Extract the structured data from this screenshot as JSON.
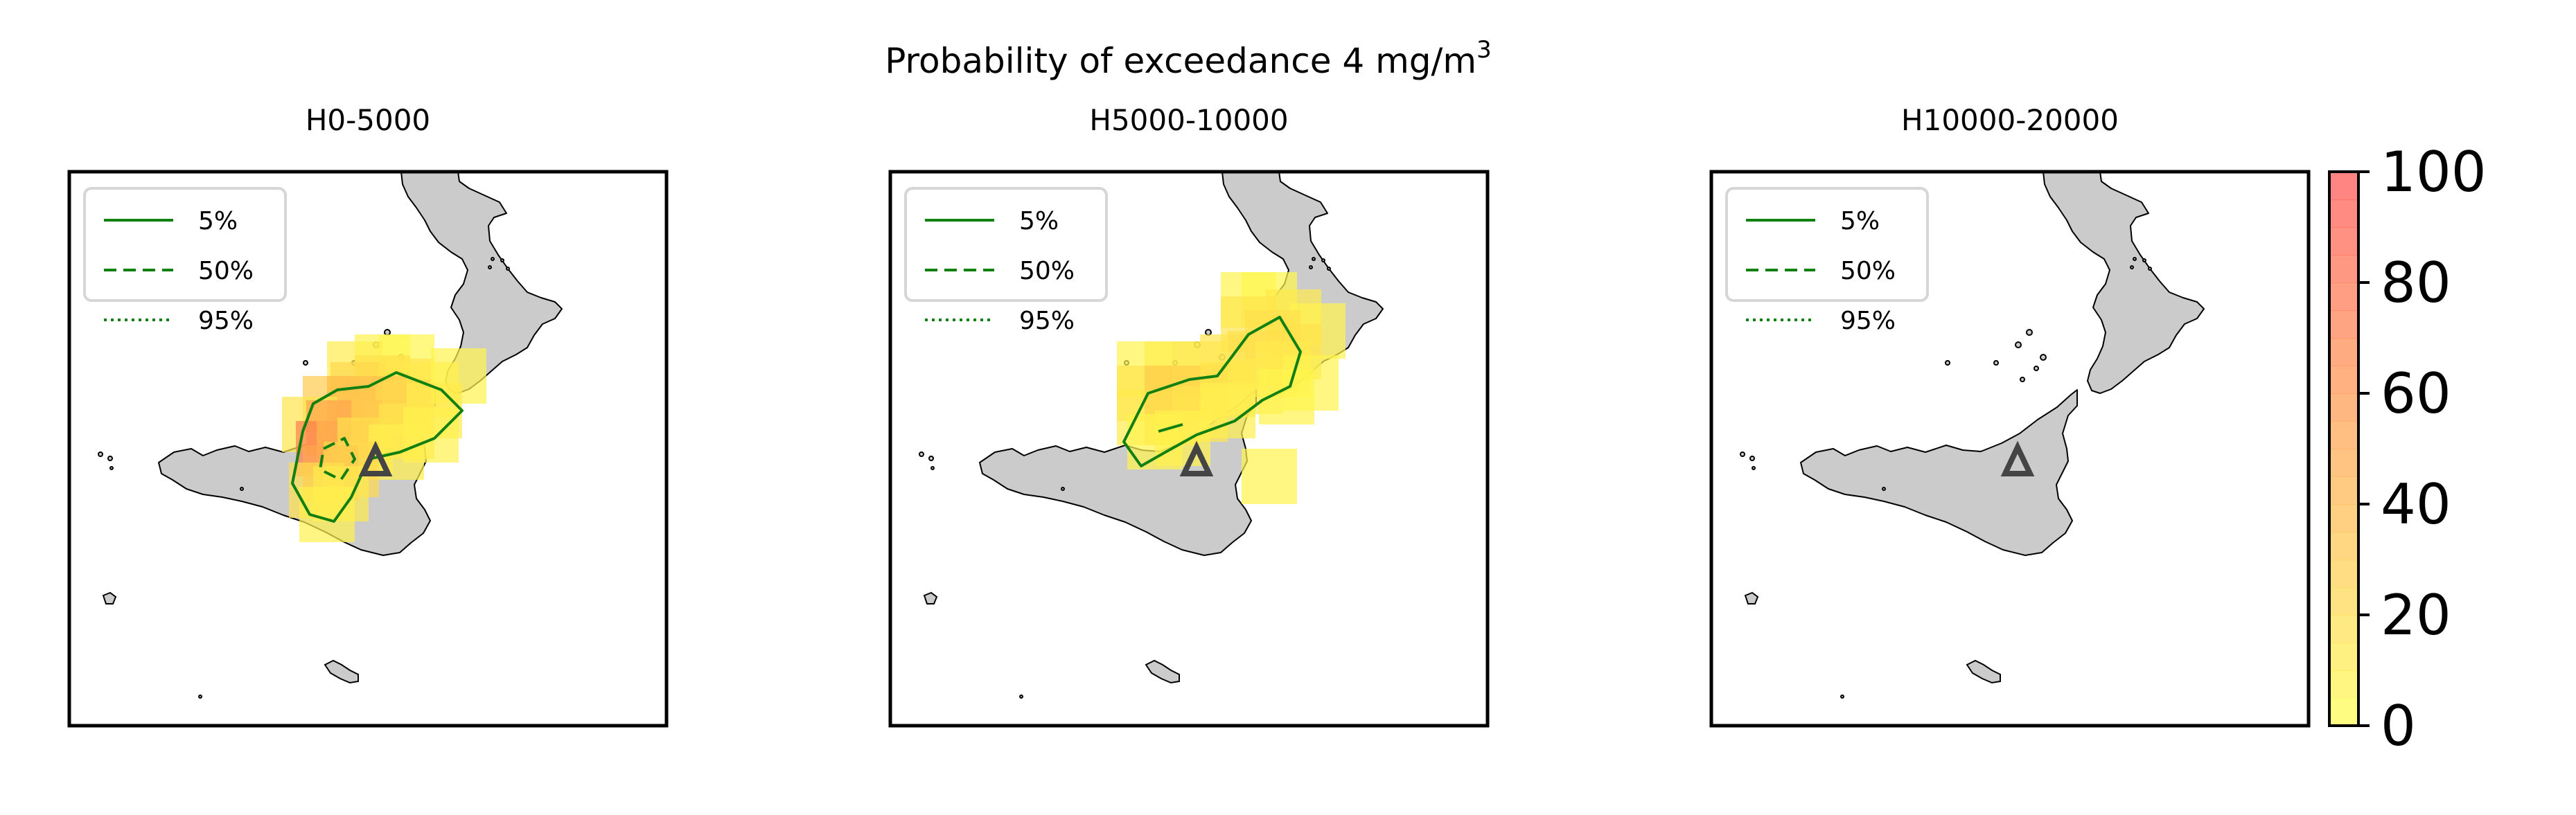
{
  "figure": {
    "title": "Probability of exceedance 4 mg/m",
    "title_sup": "3"
  },
  "chart_data": [
    {
      "type": "heatmap",
      "title": "H0-5000",
      "legend": {
        "placement": "top-left",
        "entries": [
          {
            "label": "5%",
            "style": "solid"
          },
          {
            "label": "50%",
            "style": "dashed"
          },
          {
            "label": "95%",
            "style": "dotted"
          }
        ]
      },
      "vent": "triangle",
      "contours": [
        {
          "level": "5%",
          "style": "solid",
          "points": [
            [
              -1.05,
              0.45
            ],
            [
              -0.9,
              0.85
            ],
            [
              -0.55,
              1.05
            ],
            [
              -0.1,
              1.1
            ],
            [
              0.3,
              1.3
            ],
            [
              0.95,
              1.05
            ],
            [
              1.25,
              0.75
            ],
            [
              0.85,
              0.35
            ],
            [
              0.35,
              0.15
            ],
            [
              -0.1,
              0.05
            ],
            [
              -0.35,
              -0.5
            ],
            [
              -0.6,
              -0.85
            ],
            [
              -0.95,
              -0.75
            ],
            [
              -1.2,
              -0.3
            ]
          ]
        },
        {
          "level": "50%",
          "style": "dashed",
          "points": [
            [
              -0.75,
              0.2
            ],
            [
              -0.45,
              0.35
            ],
            [
              -0.3,
              0.05
            ],
            [
              -0.5,
              -0.25
            ],
            [
              -0.8,
              -0.1
            ]
          ]
        }
      ],
      "cells": [
        {
          "x": 0.1,
          "y": 1.45,
          "p": 6
        },
        {
          "x": 0.45,
          "y": 1.45,
          "p": 5
        },
        {
          "x": -0.3,
          "y": 1.35,
          "p": 10
        },
        {
          "x": 0.1,
          "y": 1.15,
          "p": 18
        },
        {
          "x": -0.25,
          "y": 1.05,
          "p": 22
        },
        {
          "x": 0.45,
          "y": 1.1,
          "p": 14
        },
        {
          "x": 0.8,
          "y": 1.05,
          "p": 12
        },
        {
          "x": 1.2,
          "y": 1.25,
          "p": 7
        },
        {
          "x": -0.65,
          "y": 0.85,
          "p": 30
        },
        {
          "x": -0.3,
          "y": 0.85,
          "p": 36
        },
        {
          "x": 0.05,
          "y": 0.85,
          "p": 32
        },
        {
          "x": 0.4,
          "y": 0.8,
          "p": 22
        },
        {
          "x": 0.85,
          "y": 0.75,
          "p": 12
        },
        {
          "x": -0.95,
          "y": 0.55,
          "p": 14
        },
        {
          "x": -0.6,
          "y": 0.5,
          "p": 50
        },
        {
          "x": -0.3,
          "y": 0.5,
          "p": 45
        },
        {
          "x": 0.05,
          "y": 0.5,
          "p": 25
        },
        {
          "x": 0.45,
          "y": 0.45,
          "p": 15
        },
        {
          "x": 0.8,
          "y": 0.4,
          "p": 8
        },
        {
          "x": -0.75,
          "y": 0.2,
          "p": 72
        },
        {
          "x": -0.45,
          "y": 0.2,
          "p": 40
        },
        {
          "x": -0.15,
          "y": 0.25,
          "p": 18
        },
        {
          "x": 0.3,
          "y": 0.15,
          "p": 9
        },
        {
          "x": -0.65,
          "y": -0.15,
          "p": 50
        },
        {
          "x": -0.35,
          "y": -0.1,
          "p": 22
        },
        {
          "x": -0.85,
          "y": -0.4,
          "p": 18
        },
        {
          "x": -0.5,
          "y": -0.45,
          "p": 12
        },
        {
          "x": -0.7,
          "y": -0.75,
          "p": 8
        }
      ]
    },
    {
      "type": "heatmap",
      "title": "H5000-10000",
      "legend": {
        "placement": "top-left",
        "entries": [
          {
            "label": "5%",
            "style": "solid"
          },
          {
            "label": "50%",
            "style": "dashed"
          },
          {
            "label": "95%",
            "style": "dotted"
          }
        ]
      },
      "vent": "triangle",
      "contours": [
        {
          "level": "5%",
          "style": "solid",
          "points": [
            [
              -1.05,
              0.3
            ],
            [
              -0.7,
              1.0
            ],
            [
              -0.1,
              1.2
            ],
            [
              0.3,
              1.25
            ],
            [
              0.75,
              1.85
            ],
            [
              1.2,
              2.1
            ],
            [
              1.5,
              1.6
            ],
            [
              1.35,
              1.1
            ],
            [
              0.95,
              0.9
            ],
            [
              0.55,
              0.6
            ],
            [
              0.0,
              0.4
            ],
            [
              -0.45,
              0.15
            ],
            [
              -0.8,
              -0.05
            ]
          ]
        },
        {
          "level": "5%",
          "style": "solid",
          "points": [
            [
              -0.55,
              0.45
            ],
            [
              -0.2,
              0.55
            ]
          ]
        }
      ],
      "cells": [
        {
          "x": 0.75,
          "y": 2.35,
          "p": 6
        },
        {
          "x": 1.05,
          "y": 2.35,
          "p": 5
        },
        {
          "x": 1.4,
          "y": 2.1,
          "p": 12
        },
        {
          "x": 1.75,
          "y": 1.9,
          "p": 6
        },
        {
          "x": 0.75,
          "y": 2.0,
          "p": 14
        },
        {
          "x": 1.1,
          "y": 1.8,
          "p": 18
        },
        {
          "x": 1.4,
          "y": 1.6,
          "p": 16
        },
        {
          "x": -0.75,
          "y": 1.35,
          "p": 7
        },
        {
          "x": -0.35,
          "y": 1.35,
          "p": 10
        },
        {
          "x": 0.05,
          "y": 1.35,
          "p": 12
        },
        {
          "x": 0.45,
          "y": 1.45,
          "p": 14
        },
        {
          "x": 0.85,
          "y": 1.5,
          "p": 18
        },
        {
          "x": 1.25,
          "y": 1.35,
          "p": 12
        },
        {
          "x": 1.65,
          "y": 1.15,
          "p": 6
        },
        {
          "x": -0.75,
          "y": 1.0,
          "p": 16
        },
        {
          "x": -0.35,
          "y": 1.0,
          "p": 28
        },
        {
          "x": 0.05,
          "y": 1.0,
          "p": 22
        },
        {
          "x": 0.45,
          "y": 1.05,
          "p": 15
        },
        {
          "x": 0.85,
          "y": 1.1,
          "p": 12
        },
        {
          "x": 1.3,
          "y": 0.95,
          "p": 7
        },
        {
          "x": -0.75,
          "y": 0.65,
          "p": 12
        },
        {
          "x": -0.35,
          "y": 0.65,
          "p": 22
        },
        {
          "x": 0.05,
          "y": 0.7,
          "p": 14
        },
        {
          "x": 0.45,
          "y": 0.75,
          "p": 9
        },
        {
          "x": -0.6,
          "y": 0.3,
          "p": 7
        },
        {
          "x": -0.2,
          "y": 0.35,
          "p": 8
        },
        {
          "x": 1.05,
          "y": -0.2,
          "p": 6
        }
      ]
    },
    {
      "type": "heatmap",
      "title": "H10000-20000",
      "legend": {
        "placement": "top-left",
        "entries": [
          {
            "label": "5%",
            "style": "solid"
          },
          {
            "label": "50%",
            "style": "dashed"
          },
          {
            "label": "95%",
            "style": "dotted"
          }
        ]
      },
      "vent": "triangle",
      "contours": [],
      "cells": []
    }
  ],
  "colorbar": {
    "colors": [
      "#ffff4d",
      "#ff4d4d"
    ],
    "vmin": 0,
    "vmax": 100,
    "levels": 20,
    "ticks": [
      "0",
      "20",
      "40",
      "60",
      "80",
      "100"
    ]
  },
  "colors": {
    "land": "#cbcbcb",
    "contour": "#117f11",
    "vent": "#444444"
  }
}
